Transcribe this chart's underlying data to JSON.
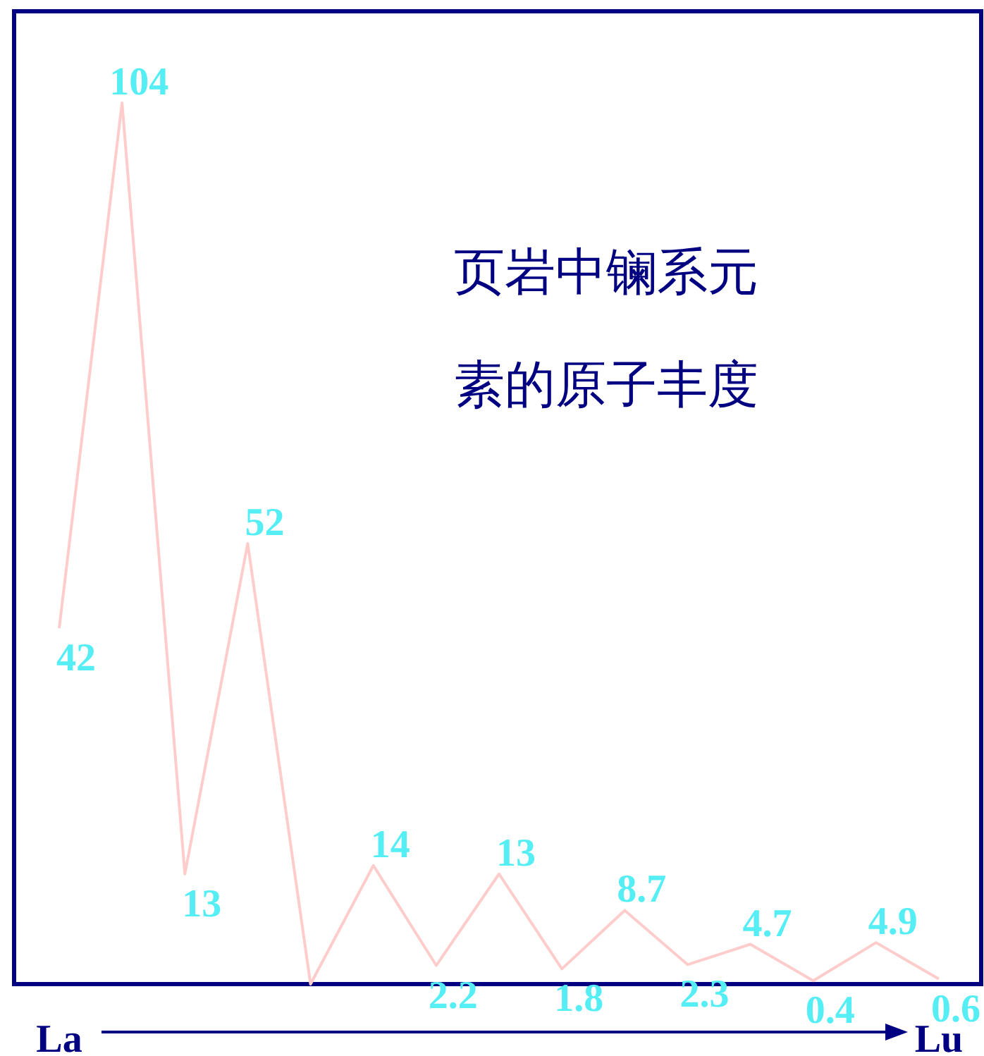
{
  "chart_data": {
    "type": "line",
    "title": "页岩中镧系元素的原子丰度",
    "categories": [
      "La",
      null,
      null,
      null,
      null,
      null,
      null,
      null,
      null,
      null,
      null,
      null,
      null,
      null,
      "Lu"
    ],
    "series": [
      {
        "color": "#ffcccc",
        "values": [
          42,
          104,
          13,
          52,
          0,
          14,
          2.2,
          13,
          1.8,
          8.7,
          2.3,
          4.7,
          0.4,
          4.9,
          0.6
        ],
        "value_labels": [
          "42",
          "104",
          "13",
          "52",
          null,
          "14",
          "2.2",
          "13",
          "1.8",
          "8.7",
          "2.3",
          "4.7",
          "0.4",
          "4.9",
          "0.6"
        ]
      }
    ],
    "marker": "none"
  }
}
